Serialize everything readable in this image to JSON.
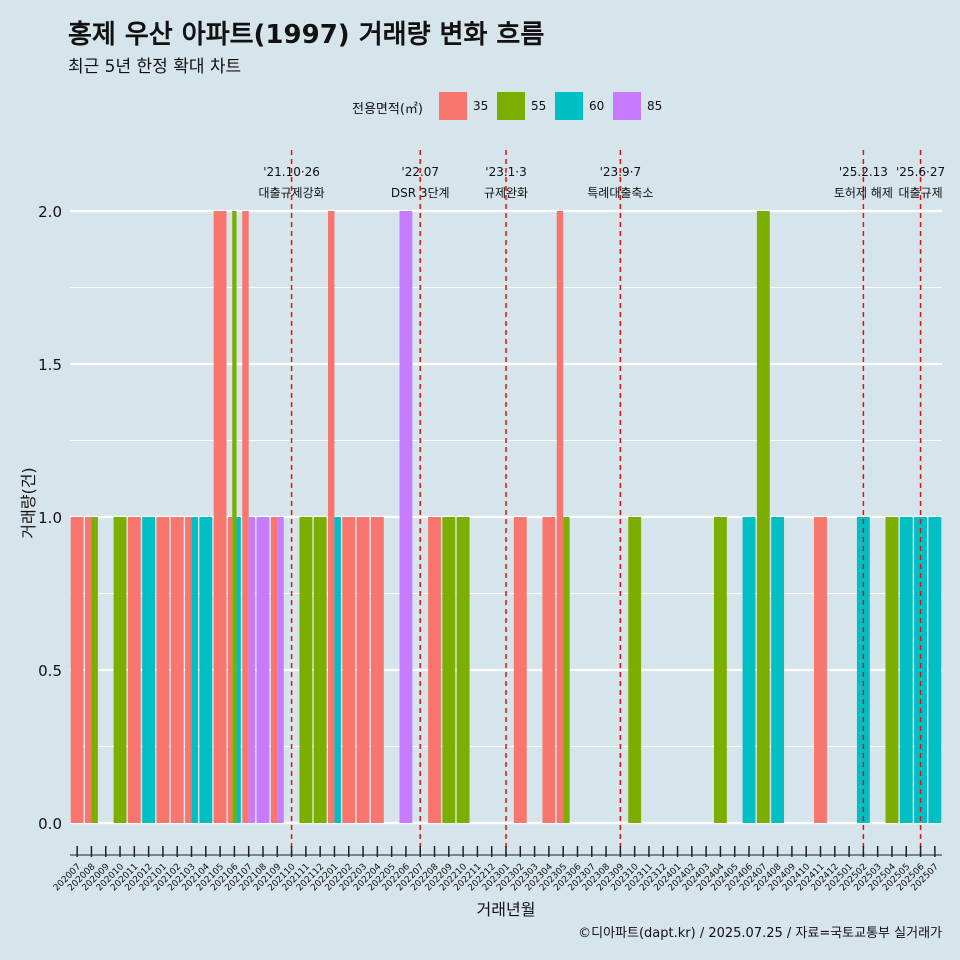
{
  "header": {
    "title": "홍제 우산 아파트(1997) 거래량 변화 흐름",
    "subtitle": "최근 5년 한정 확대 차트"
  },
  "legend": {
    "title": "전용면적(㎡)",
    "items": [
      {
        "label": "35",
        "color": "#f8766d"
      },
      {
        "label": "55",
        "color": "#7cae00"
      },
      {
        "label": "60",
        "color": "#00bfc4"
      },
      {
        "label": "85",
        "color": "#c77cff"
      }
    ]
  },
  "caption": "©디아파트(dapt.kr) / 2025.07.25 / 자료=국토교통부 실거래가",
  "chart_data": {
    "type": "bar",
    "xlabel": "거래년월",
    "ylabel": "거래량(건)",
    "ylim": [
      0,
      2
    ],
    "yticks": [
      "0.0",
      "0.5",
      "1.0",
      "1.5",
      "2.0"
    ],
    "grid": true,
    "legend_position": "top",
    "categories": [
      "202007",
      "202008",
      "202009",
      "202010",
      "202011",
      "202012",
      "202101",
      "202102",
      "202103",
      "202104",
      "202105",
      "202106",
      "202107",
      "202108",
      "202109",
      "202110",
      "202111",
      "202112",
      "202201",
      "202202",
      "202203",
      "202204",
      "202205",
      "202206",
      "202207",
      "202208",
      "202209",
      "202210",
      "202211",
      "202212",
      "202301",
      "202302",
      "202303",
      "202304",
      "202305",
      "202306",
      "202307",
      "202308",
      "202309",
      "202310",
      "202311",
      "202312",
      "202401",
      "202402",
      "202403",
      "202404",
      "202405",
      "202406",
      "202407",
      "202408",
      "202409",
      "202410",
      "202411",
      "202412",
      "202501",
      "202502",
      "202503",
      "202504",
      "202505",
      "202506",
      "202507"
    ],
    "bars": [
      {
        "month": "202007",
        "groups": [
          [
            "35",
            1
          ]
        ]
      },
      {
        "month": "202008",
        "groups": [
          [
            "35",
            1
          ],
          [
            "55",
            1
          ]
        ]
      },
      {
        "month": "202010",
        "groups": [
          [
            "55",
            1
          ]
        ]
      },
      {
        "month": "202011",
        "groups": [
          [
            "35",
            1
          ]
        ]
      },
      {
        "month": "202012",
        "groups": [
          [
            "60",
            1
          ]
        ]
      },
      {
        "month": "202101",
        "groups": [
          [
            "35",
            1
          ]
        ]
      },
      {
        "month": "202102",
        "groups": [
          [
            "35",
            1
          ]
        ]
      },
      {
        "month": "202103",
        "groups": [
          [
            "35",
            1
          ],
          [
            "60",
            1
          ]
        ]
      },
      {
        "month": "202104",
        "groups": [
          [
            "60",
            1
          ]
        ]
      },
      {
        "month": "202105",
        "groups": [
          [
            "35",
            2
          ]
        ]
      },
      {
        "month": "202106",
        "groups": [
          [
            "35",
            1
          ],
          [
            "55",
            2
          ],
          [
            "60",
            1
          ]
        ]
      },
      {
        "month": "202107",
        "groups": [
          [
            "35",
            2
          ],
          [
            "85",
            1
          ]
        ]
      },
      {
        "month": "202108",
        "groups": [
          [
            "85",
            1
          ]
        ]
      },
      {
        "month": "202109",
        "groups": [
          [
            "35",
            1
          ],
          [
            "85",
            1
          ]
        ]
      },
      {
        "month": "202111",
        "groups": [
          [
            "55",
            1
          ]
        ]
      },
      {
        "month": "202112",
        "groups": [
          [
            "55",
            1
          ]
        ]
      },
      {
        "month": "202201",
        "groups": [
          [
            "35",
            2
          ],
          [
            "60",
            1
          ]
        ]
      },
      {
        "month": "202202",
        "groups": [
          [
            "35",
            1
          ]
        ]
      },
      {
        "month": "202203",
        "groups": [
          [
            "35",
            1
          ]
        ]
      },
      {
        "month": "202204",
        "groups": [
          [
            "35",
            1
          ]
        ]
      },
      {
        "month": "202206",
        "groups": [
          [
            "85",
            2
          ]
        ]
      },
      {
        "month": "202208",
        "groups": [
          [
            "35",
            1
          ]
        ]
      },
      {
        "month": "202209",
        "groups": [
          [
            "55",
            1
          ]
        ]
      },
      {
        "month": "202210",
        "groups": [
          [
            "55",
            1
          ]
        ]
      },
      {
        "month": "202302",
        "groups": [
          [
            "35",
            1
          ]
        ]
      },
      {
        "month": "202304",
        "groups": [
          [
            "35",
            1
          ]
        ]
      },
      {
        "month": "202305",
        "groups": [
          [
            "35",
            2
          ],
          [
            "55",
            1
          ]
        ]
      },
      {
        "month": "202310",
        "groups": [
          [
            "55",
            1
          ]
        ]
      },
      {
        "month": "202404",
        "groups": [
          [
            "55",
            1
          ]
        ]
      },
      {
        "month": "202406",
        "groups": [
          [
            "60",
            1
          ]
        ]
      },
      {
        "month": "202407",
        "groups": [
          [
            "55",
            2
          ]
        ]
      },
      {
        "month": "202408",
        "groups": [
          [
            "60",
            1
          ]
        ]
      },
      {
        "month": "202411",
        "groups": [
          [
            "35",
            1
          ]
        ]
      },
      {
        "month": "202502",
        "groups": [
          [
            "60",
            1
          ]
        ]
      },
      {
        "month": "202504",
        "groups": [
          [
            "55",
            1
          ]
        ]
      },
      {
        "month": "202505",
        "groups": [
          [
            "60",
            1
          ]
        ]
      },
      {
        "month": "202506",
        "groups": [
          [
            "60",
            1
          ]
        ]
      },
      {
        "month": "202507",
        "groups": [
          [
            "60",
            1
          ]
        ]
      }
    ],
    "annotations": [
      {
        "month": "202110",
        "date": "'21.10·26",
        "label": "대출규제강화"
      },
      {
        "month": "202207",
        "date": "'22.07",
        "label": "DSR 3단계"
      },
      {
        "month": "202301",
        "date": "'23.1·3",
        "label": "규제완화"
      },
      {
        "month": "202309",
        "date": "'23.9·7",
        "label": "특례대출축소"
      },
      {
        "month": "202502",
        "date": "'25.2.13",
        "label": "토허제 해제"
      },
      {
        "month": "202506",
        "date": "'25.6·27",
        "label": "대출규제"
      }
    ]
  }
}
